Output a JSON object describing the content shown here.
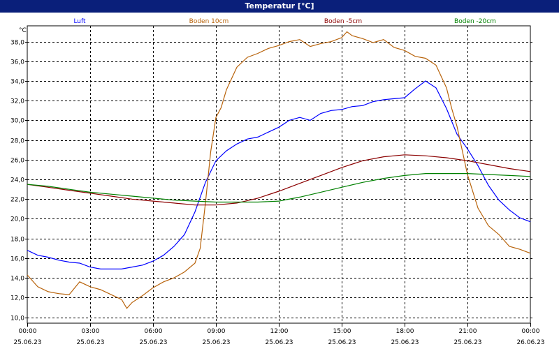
{
  "title": "Temperatur [°C]",
  "chart_data": {
    "type": "line",
    "title": "Temperatur [°C]",
    "ylabel": "°C",
    "xlabel": "",
    "ylim": [
      9.4,
      39.6
    ],
    "xlim": [
      0,
      24
    ],
    "yticks": [
      "10,0",
      "12,0",
      "14,0",
      "16,0",
      "18,0",
      "20,0",
      "22,0",
      "24,0",
      "26,0",
      "28,0",
      "30,0",
      "32,0",
      "34,0",
      "36,0",
      "38,0"
    ],
    "ytick_values": [
      10,
      12,
      14,
      16,
      18,
      20,
      22,
      24,
      26,
      28,
      30,
      32,
      34,
      36,
      38
    ],
    "xticks": [
      {
        "x": 0,
        "time": "00:00",
        "date": "25.06.23"
      },
      {
        "x": 3,
        "time": "03:00",
        "date": "25.06.23"
      },
      {
        "x": 6,
        "time": "06:00",
        "date": "25.06.23"
      },
      {
        "x": 9,
        "time": "09:00",
        "date": "25.06.23"
      },
      {
        "x": 12,
        "time": "12:00",
        "date": "25.06.23"
      },
      {
        "x": 15,
        "time": "15:00",
        "date": "25.06.23"
      },
      {
        "x": 18,
        "time": "18:00",
        "date": "25.06.23"
      },
      {
        "x": 21,
        "time": "21:00",
        "date": "25.06.23"
      },
      {
        "x": 24,
        "time": "00:00",
        "date": "26.06.23"
      }
    ],
    "grid": true,
    "legend_position": "top",
    "series": [
      {
        "name": "Luft",
        "color": "#0000ff",
        "x": [
          0,
          0.5,
          1,
          1.5,
          2,
          2.5,
          3,
          3.5,
          4,
          4.5,
          5,
          5.5,
          6,
          6.5,
          7,
          7.5,
          8,
          8.5,
          9,
          9.5,
          10,
          10.5,
          11,
          11.5,
          12,
          12.5,
          13,
          13.5,
          14,
          14.5,
          15,
          15.5,
          16,
          16.5,
          17,
          17.5,
          18,
          18.5,
          19,
          19.5,
          20,
          20.5,
          21,
          21.5,
          22,
          22.5,
          23,
          23.5,
          24
        ],
        "y": [
          16.8,
          16.3,
          16.1,
          15.8,
          15.6,
          15.5,
          15.1,
          14.9,
          14.9,
          14.9,
          15.1,
          15.3,
          15.7,
          16.3,
          17.2,
          18.4,
          20.7,
          23.7,
          25.9,
          26.9,
          27.6,
          28.1,
          28.3,
          28.8,
          29.3,
          30.0,
          30.3,
          30.0,
          30.7,
          31.0,
          31.1,
          31.4,
          31.5,
          31.9,
          32.1,
          32.2,
          32.3,
          33.2,
          34.0,
          33.3,
          31.2,
          28.6,
          27.1,
          25.4,
          23.4,
          21.9,
          20.9,
          20.1,
          19.7
        ]
      },
      {
        "name": "Boden 10cm",
        "color": "#b8630b",
        "x": [
          0,
          0.5,
          1,
          1.5,
          2,
          2.5,
          3,
          3.5,
          4,
          4.5,
          4.75,
          5,
          5.5,
          6,
          6.5,
          7,
          7.5,
          8,
          8.25,
          8.5,
          8.75,
          9,
          9.25,
          9.5,
          10,
          10.5,
          11,
          11.5,
          12,
          12.5,
          13,
          13.5,
          14,
          14.5,
          15,
          15.25,
          15.5,
          16,
          16.5,
          17,
          17.5,
          18,
          18.5,
          19,
          19.5,
          20,
          20.25,
          20.5,
          21,
          21.5,
          22,
          22.5,
          23,
          23.5,
          24
        ],
        "y": [
          14.3,
          13.1,
          12.6,
          12.4,
          12.3,
          13.6,
          13.1,
          12.8,
          12.3,
          11.8,
          10.9,
          11.5,
          12.2,
          13.0,
          13.6,
          14.0,
          14.6,
          15.5,
          17.0,
          21.6,
          26.8,
          30.3,
          31.3,
          33.1,
          35.4,
          36.4,
          36.8,
          37.3,
          37.6,
          38.0,
          38.2,
          37.5,
          37.8,
          38.0,
          38.4,
          39.0,
          38.6,
          38.3,
          37.9,
          38.2,
          37.4,
          37.1,
          36.5,
          36.3,
          35.6,
          33.3,
          31.2,
          29.4,
          24.5,
          21.1,
          19.3,
          18.4,
          17.2,
          16.9,
          16.5
        ]
      },
      {
        "name": "Boden -5cm",
        "color": "#8b0000",
        "x": [
          0,
          1,
          2,
          3,
          4,
          5,
          6,
          7,
          8,
          9,
          10,
          11,
          12,
          13,
          14,
          15,
          16,
          17,
          18,
          19,
          20,
          21,
          22,
          23,
          24
        ],
        "y": [
          23.5,
          23.2,
          22.9,
          22.6,
          22.3,
          22.0,
          21.8,
          21.6,
          21.4,
          21.4,
          21.6,
          22.1,
          22.8,
          23.6,
          24.4,
          25.2,
          25.9,
          26.3,
          26.5,
          26.4,
          26.2,
          25.9,
          25.5,
          25.1,
          24.8
        ]
      },
      {
        "name": "Boden -20cm",
        "color": "#008000",
        "x": [
          0,
          1,
          2,
          3,
          4,
          5,
          6,
          7,
          8,
          9,
          10,
          11,
          12,
          13,
          14,
          15,
          16,
          17,
          18,
          19,
          20,
          21,
          22,
          23,
          24
        ],
        "y": [
          23.5,
          23.3,
          23.0,
          22.7,
          22.5,
          22.3,
          22.1,
          21.9,
          21.8,
          21.7,
          21.7,
          21.7,
          21.8,
          22.2,
          22.7,
          23.2,
          23.7,
          24.1,
          24.4,
          24.6,
          24.6,
          24.6,
          24.5,
          24.4,
          24.3
        ]
      }
    ]
  }
}
